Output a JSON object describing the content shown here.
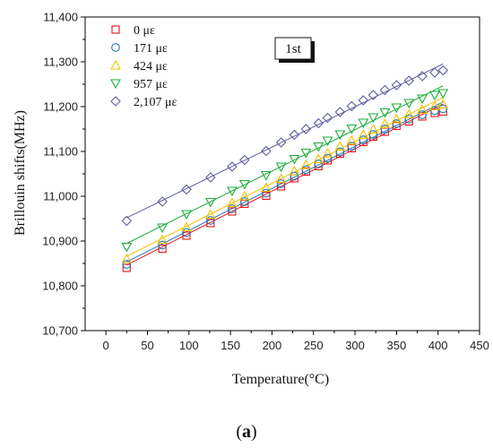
{
  "chart_data": {
    "type": "scatter",
    "title": "",
    "xlabel": "Temperature(°C)",
    "ylabel": "Brillouin shifts(MHz)",
    "xlim": [
      -25,
      450
    ],
    "ylim": [
      10700,
      11400
    ],
    "xticks": [
      0,
      50,
      100,
      150,
      200,
      250,
      300,
      350,
      400,
      450
    ],
    "xtick_labels": [
      "0",
      "50",
      "100",
      "150",
      "200",
      "250",
      "300",
      "350",
      "400",
      "450"
    ],
    "yticks": [
      10700,
      10800,
      10900,
      11000,
      11100,
      11200,
      11300,
      11400
    ],
    "ytick_labels": [
      "10,700",
      "10,800",
      "10,900",
      "11,000",
      "11,100",
      "11,200",
      "11,300",
      "11,400"
    ],
    "grid": false,
    "legend_position": "top-left",
    "annotation": "1st",
    "caption": {
      "open": "(",
      "letter": "a",
      "close": ")"
    },
    "series": [
      {
        "name": "0 με",
        "marker": "square",
        "color": "#e8141c",
        "x": [
          25,
          68,
          97,
          126,
          152,
          167,
          193,
          211,
          227,
          241,
          256,
          267,
          282,
          296,
          310,
          322,
          336,
          350,
          365,
          381,
          396,
          406
        ],
        "y": [
          10840,
          10883,
          10912,
          10940,
          10966,
          10983,
          11001,
          11022,
          11040,
          11055,
          11067,
          11080,
          11095,
          11107,
          11121,
          11133,
          11144,
          11157,
          11167,
          11178,
          11186,
          11189
        ]
      },
      {
        "name": "171 με",
        "marker": "circle",
        "color": "#1f78b4",
        "x": [
          25,
          68,
          97,
          126,
          152,
          167,
          193,
          211,
          227,
          241,
          256,
          267,
          282,
          296,
          310,
          322,
          336,
          350,
          365,
          381,
          396,
          406
        ],
        "y": [
          10848,
          10891,
          10919,
          10946,
          10972,
          10988,
          11007,
          11028,
          11045,
          11059,
          11072,
          11085,
          11099,
          11112,
          11126,
          11138,
          11150,
          11162,
          11172,
          11182,
          11191,
          11195
        ]
      },
      {
        "name": "424 με",
        "marker": "triangle-up",
        "color": "#f2c200",
        "x": [
          25,
          68,
          97,
          126,
          152,
          167,
          193,
          211,
          227,
          241,
          256,
          267,
          282,
          296,
          310,
          322,
          336,
          350,
          365,
          381,
          396,
          406
        ],
        "y": [
          10860,
          10903,
          10931,
          10959,
          10985,
          11000,
          11019,
          11039,
          11056,
          11070,
          11083,
          11096,
          11111,
          11124,
          11137,
          11149,
          11161,
          11172,
          11183,
          11193,
          11201,
          11205
        ]
      },
      {
        "name": "957 με",
        "marker": "triangle-down",
        "color": "#1aae3a",
        "x": [
          25,
          68,
          97,
          126,
          152,
          167,
          193,
          211,
          227,
          241,
          256,
          267,
          282,
          296,
          310,
          322,
          336,
          350,
          365,
          381,
          396,
          406
        ],
        "y": [
          10887,
          10930,
          10960,
          10987,
          11012,
          11027,
          11047,
          11066,
          11083,
          11097,
          11111,
          11124,
          11138,
          11151,
          11164,
          11176,
          11187,
          11198,
          11208,
          11218,
          11226,
          11230
        ]
      },
      {
        "name": "2,107 με",
        "marker": "diamond",
        "color": "#5c5ca0",
        "x": [
          25,
          68,
          97,
          126,
          152,
          167,
          193,
          211,
          227,
          241,
          256,
          267,
          282,
          296,
          310,
          322,
          336,
          350,
          365,
          381,
          396,
          406
        ],
        "y": [
          10945,
          10988,
          11015,
          11042,
          11066,
          11081,
          11101,
          11120,
          11137,
          11150,
          11163,
          11175,
          11188,
          11201,
          11214,
          11226,
          11237,
          11248,
          11258,
          11268,
          11276,
          11281
        ]
      }
    ]
  }
}
